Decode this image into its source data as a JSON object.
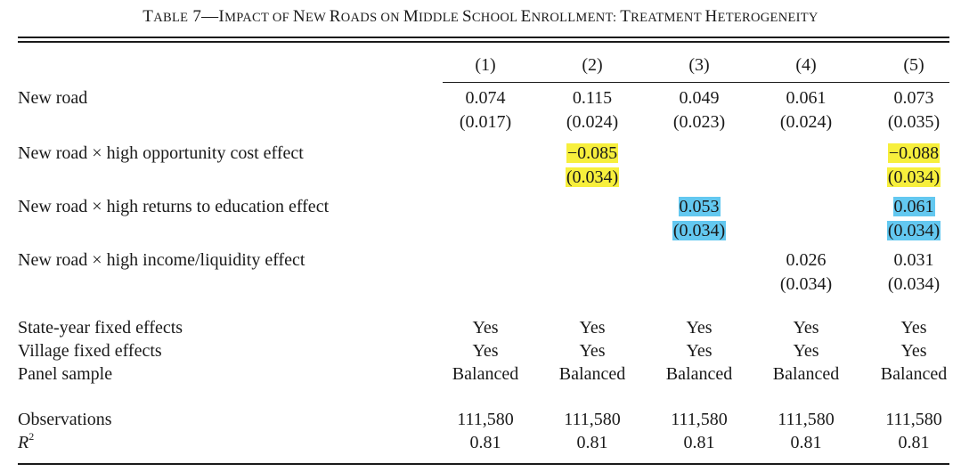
{
  "title": {
    "prefix_large": "T",
    "prefix_small": "ABLE",
    "number": " 7—",
    "words": [
      [
        "I",
        "MPACT OF "
      ],
      [
        "N",
        "EW "
      ],
      [
        "R",
        "OADS ON "
      ],
      [
        "M",
        "IDDLE "
      ],
      [
        "S",
        "CHOOL "
      ],
      [
        "E",
        "NROLLMENT: "
      ],
      [
        "T",
        "REATMENT "
      ],
      [
        "H",
        "ETEROGENEITY"
      ]
    ]
  },
  "columns": [
    "(1)",
    "(2)",
    "(3)",
    "(4)",
    "(5)"
  ],
  "rows": {
    "new_road": {
      "label": "New road",
      "coef": [
        "0.074",
        "0.115",
        "0.049",
        "0.061",
        "0.073"
      ],
      "se": [
        "(0.017)",
        "(0.024)",
        "(0.023)",
        "(0.024)",
        "(0.035)"
      ]
    },
    "opp_cost": {
      "label": "New road × high opportunity cost effect",
      "coef": [
        "",
        "−0.085",
        "",
        "",
        "−0.088"
      ],
      "se": [
        "",
        "(0.034)",
        "",
        "",
        "(0.034)"
      ],
      "highlight": "#f7ef3c"
    },
    "returns": {
      "label": "New road × high returns to education effect",
      "coef": [
        "",
        "",
        "0.053",
        "",
        "0.061"
      ],
      "se": [
        "",
        "",
        "(0.034)",
        "",
        "(0.034)"
      ],
      "highlight": "#63c8f0"
    },
    "income": {
      "label": "New road × high income/liquidity effect",
      "coef": [
        "",
        "",
        "",
        "0.026",
        "0.031"
      ],
      "se": [
        "",
        "",
        "",
        "(0.034)",
        "(0.034)"
      ]
    }
  },
  "controls": {
    "state_year": {
      "label": "State-year fixed effects",
      "values": [
        "Yes",
        "Yes",
        "Yes",
        "Yes",
        "Yes"
      ]
    },
    "village": {
      "label": "Village fixed effects",
      "values": [
        "Yes",
        "Yes",
        "Yes",
        "Yes",
        "Yes"
      ]
    },
    "panel": {
      "label": "Panel sample",
      "values": [
        "Balanced",
        "Balanced",
        "Balanced",
        "Balanced",
        "Balanced"
      ]
    }
  },
  "stats": {
    "observations": {
      "label": "Observations",
      "values": [
        "111,580",
        "111,580",
        "111,580",
        "111,580",
        "111,580"
      ]
    },
    "r2": {
      "label": "R",
      "label_sup": "2",
      "values": [
        "0.81",
        "0.81",
        "0.81",
        "0.81",
        "0.81"
      ]
    }
  }
}
